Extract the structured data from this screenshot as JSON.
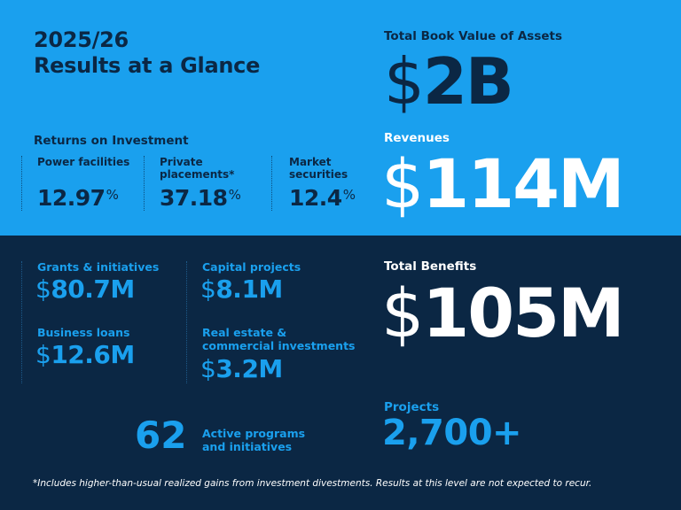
{
  "header": {
    "year": "2025/26",
    "title": "Results at a Glance"
  },
  "total_book_value": {
    "label": "Total Book Value of Assets",
    "currency": "$",
    "value": "2B"
  },
  "revenues": {
    "label": "Revenues",
    "currency": "$",
    "value": "114M"
  },
  "returns": {
    "heading": "Returns on Investment",
    "items": [
      {
        "label": "Power facilities",
        "value": "12.97",
        "unit": "%"
      },
      {
        "label": "Private placements*",
        "value": "37.18",
        "unit": "%"
      },
      {
        "label": "Market securities",
        "value": "12.4",
        "unit": "%"
      }
    ]
  },
  "benefits": {
    "items": [
      {
        "label": "Grants & initiatives",
        "currency": "$",
        "value": "80.7M"
      },
      {
        "label": "Capital projects",
        "currency": "$",
        "value": "8.1M"
      },
      {
        "label": "Business loans",
        "currency": "$",
        "value": "12.6M"
      },
      {
        "label": "Real estate & commercial investments",
        "currency": "$",
        "value": "3.2M"
      }
    ],
    "total_label": "Total Benefits",
    "total_currency": "$",
    "total_value": "105M"
  },
  "programs": {
    "count": "62",
    "label": "Active programs and initiatives"
  },
  "projects": {
    "label": "Projects",
    "value": "2,700+"
  },
  "footnote": "*Includes higher-than-usual realized gains from investment divestments. Results at this level are not expected to recur.",
  "colors": {
    "top_background": "#1aa0ee",
    "bottom_background": "#0b2744",
    "navy_text": "#0b2744",
    "accent_text": "#1aa0ee"
  }
}
